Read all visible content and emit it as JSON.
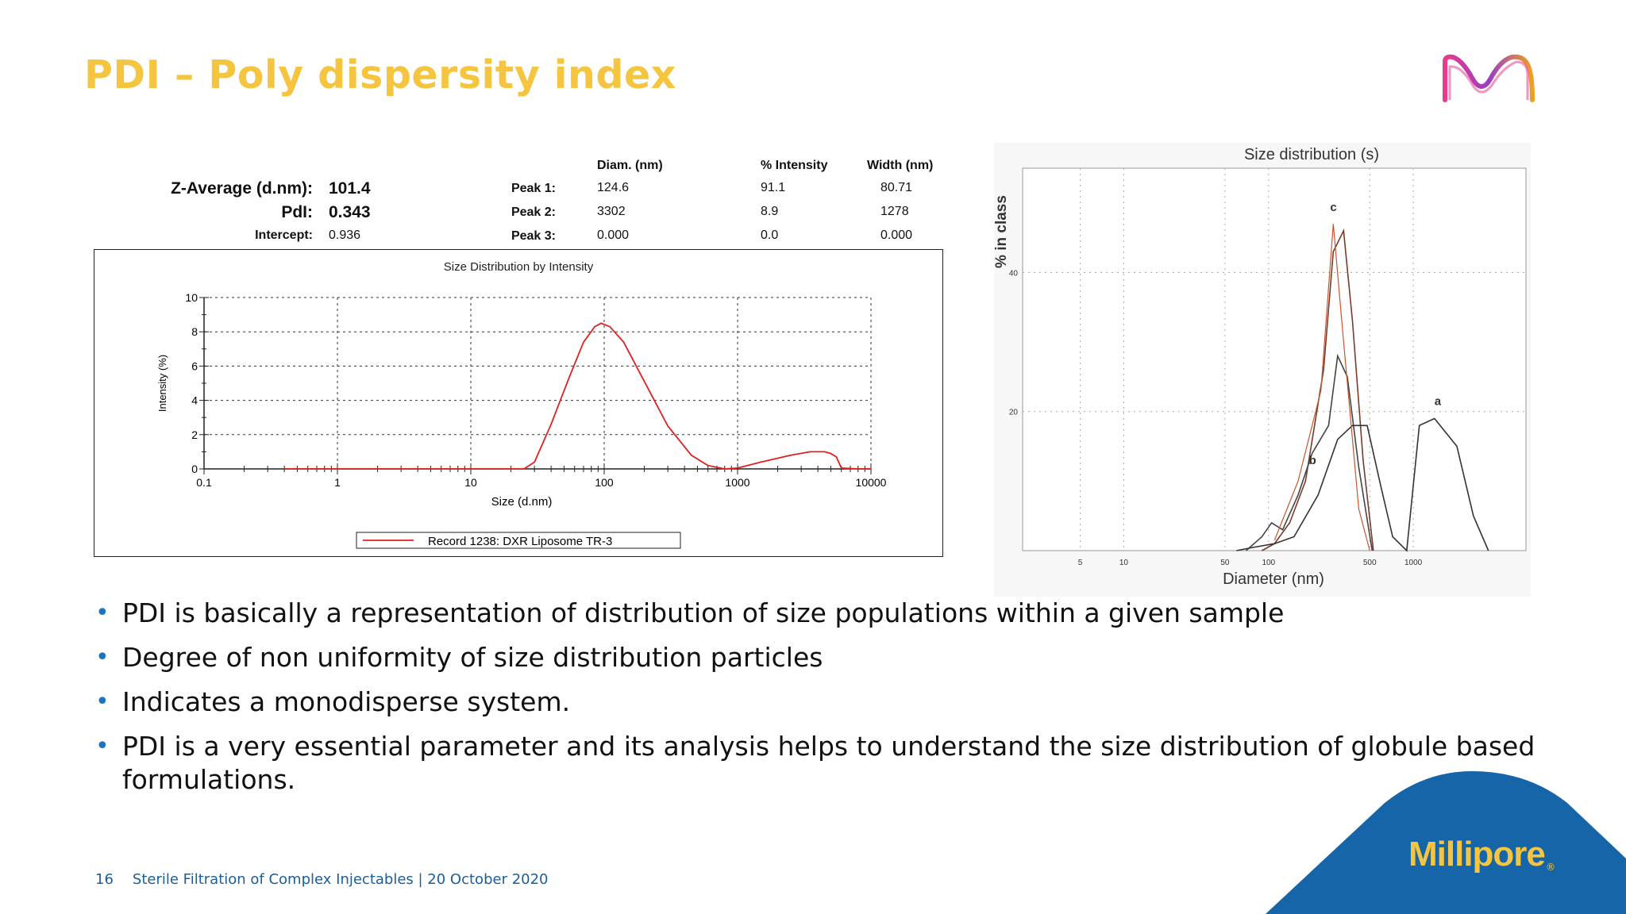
{
  "title": "PDI – Poly dispersity index",
  "colors": {
    "title": "#f5c53f",
    "accent_blue": "#1e73be",
    "brand_blue": "#1565a8",
    "series_red": "#e02020"
  },
  "results": {
    "z_average_label": "Z-Average (d.nm):",
    "z_average_value": "101.4",
    "pdi_label": "PdI:",
    "pdi_value": "0.343",
    "intercept_label": "Intercept:",
    "intercept_value": "0.936",
    "headers": {
      "diam": "Diam. (nm)",
      "intensity": "% Intensity",
      "width": "Width (nm)"
    },
    "peaks": [
      {
        "label": "Peak 1:",
        "diam": "124.6",
        "intensity": "91.1",
        "width": "80.71"
      },
      {
        "label": "Peak 2:",
        "diam": "3302",
        "intensity": "8.9",
        "width": "1278"
      },
      {
        "label": "Peak 3:",
        "diam": "0.000",
        "intensity": "0.0",
        "width": "0.000"
      }
    ]
  },
  "chart_data": [
    {
      "type": "line",
      "title": "Size Distribution by Intensity",
      "xlabel": "Size (d.nm)",
      "ylabel": "Intensity (%)",
      "xscale": "log",
      "xlim": [
        0.1,
        10000
      ],
      "ylim": [
        0,
        10
      ],
      "xticks": [
        "0.1",
        "1",
        "10",
        "100",
        "1000",
        "10000"
      ],
      "yticks": [
        "0",
        "2",
        "4",
        "6",
        "8",
        "10"
      ],
      "grid": true,
      "legend": "bottom-center",
      "series": [
        {
          "name": "Record 1238: DXR Liposome TR-3",
          "color": "#e02020",
          "x": [
            0.4,
            1,
            10,
            25,
            30,
            40,
            55,
            70,
            85,
            95,
            110,
            140,
            200,
            300,
            450,
            600,
            800,
            1000,
            1500,
            2500,
            3500,
            4500,
            5000,
            5500,
            6000,
            8000,
            10000
          ],
          "y": [
            0,
            0,
            0,
            0,
            0.4,
            2.6,
            5.4,
            7.4,
            8.3,
            8.5,
            8.3,
            7.4,
            5.1,
            2.5,
            0.8,
            0.2,
            0,
            0.05,
            0.4,
            0.8,
            1.0,
            1.0,
            0.9,
            0.7,
            0.05,
            0,
            0
          ]
        }
      ]
    },
    {
      "type": "line",
      "title": "Size distribution (s)",
      "xlabel": "Diameter (nm)",
      "ylabel": "% in class",
      "xscale": "log",
      "xticks": [
        "5",
        "10",
        "50",
        "100",
        "500",
        "1000"
      ],
      "yticks": [
        "20",
        "40"
      ],
      "grid": true,
      "annotations": [
        "a",
        "b",
        "c"
      ],
      "series": [
        {
          "name": "c",
          "x": [
            90,
            110,
            140,
            180,
            240,
            280,
            330,
            380,
            450,
            530
          ],
          "y": [
            0,
            1,
            4,
            10,
            26,
            43,
            46,
            33,
            13,
            0
          ]
        },
        {
          "name": "b",
          "x": [
            70,
            90,
            105,
            125,
            160,
            200,
            260,
            300,
            350,
            420,
            520
          ],
          "y": [
            0,
            2,
            4,
            3,
            8,
            14,
            18,
            28,
            25,
            12,
            0
          ]
        },
        {
          "name": "a",
          "x": [
            60,
            80,
            110,
            150,
            220,
            300,
            380,
            480,
            600,
            720,
            900,
            1100,
            1400,
            2000,
            2600,
            3300
          ],
          "y": [
            0,
            0.5,
            1,
            2,
            8,
            16,
            18,
            18,
            9,
            2,
            0,
            18,
            19,
            15,
            5,
            0
          ]
        }
      ]
    }
  ],
  "bullets": [
    "PDI is basically a representation of distribution of size populations within a given sample",
    "Degree of non uniformity of size distribution particles",
    "Indicates a monodisperse system.",
    "PDI is a very essential parameter and its analysis helps to understand the size distribution of globule based formulations."
  ],
  "footer": {
    "page": "16",
    "text": "Sterile Filtration of Complex Injectables | 20 October 2020"
  },
  "brand": {
    "name": "Millipore",
    "reg": "®",
    "logo_icon": "m-logo-icon"
  }
}
